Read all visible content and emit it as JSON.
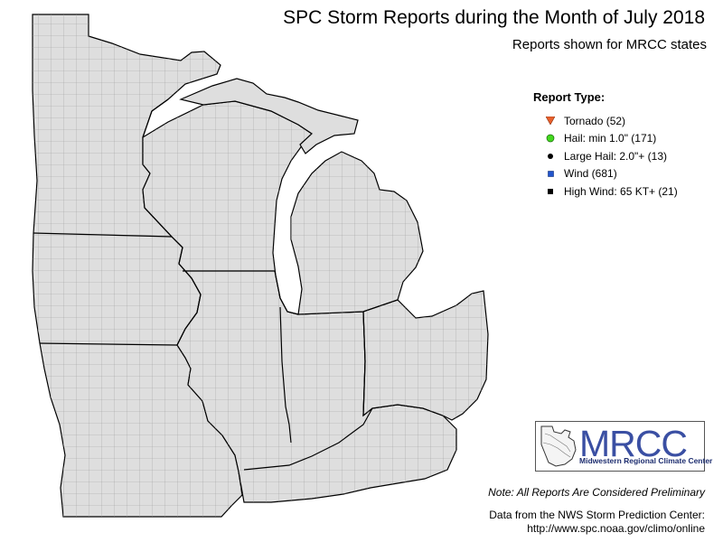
{
  "header": {
    "title": "SPC Storm Reports during the Month of July 2018",
    "subtitle": "Reports shown for MRCC states"
  },
  "legend": {
    "title": "Report Type:",
    "items": [
      {
        "label": "Tornado (52)",
        "symbol": "tornado",
        "color": "#e8602c"
      },
      {
        "label": "Hail: min 1.0\" (171)",
        "symbol": "hail",
        "color": "#44d820"
      },
      {
        "label": "Large Hail: 2.0\"+ (13)",
        "symbol": "large-hail",
        "color": "#000000"
      },
      {
        "label": "Wind (681)",
        "symbol": "wind",
        "color": "#2255cc"
      },
      {
        "label": "High Wind: 65 KT+ (21)",
        "symbol": "high-wind",
        "color": "#000000"
      }
    ]
  },
  "logo": {
    "text": "MRCC",
    "subtext": "Midwestern Regional Climate Center"
  },
  "footer": {
    "note": "Note: All Reports Are Considered Preliminary",
    "credit_line1": "Data from the NWS Storm Prediction Center:",
    "credit_line2": "http://www.spc.noaa.gov/climo/online"
  },
  "colors": {
    "land": "#dedede",
    "water": "#ffffff",
    "county_lines": "#9a9a9a",
    "state_lines": "#000000",
    "logo_blue": "#3a4fa3"
  }
}
